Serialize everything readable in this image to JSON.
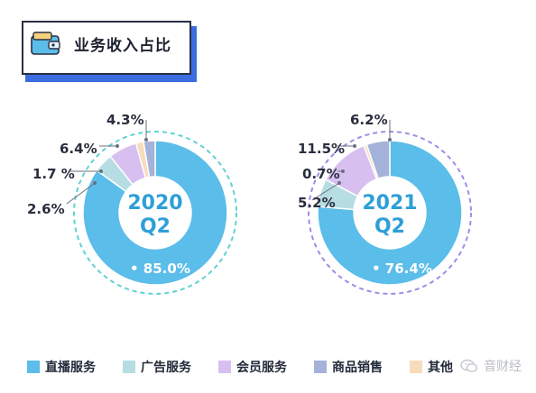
{
  "header": {
    "title": "业务收入占比"
  },
  "colors": {
    "live": "#5bbde9",
    "ads": "#b6dde3",
    "member": "#d7c0f0",
    "goods": "#a5b2d9",
    "other": "#f7dcbc"
  },
  "chart_data": [
    {
      "type": "pie",
      "title": "2020 Q2",
      "center_label_line1": "2020",
      "center_label_line2": "Q2",
      "slices": [
        {
          "name": "直播服务",
          "value": 85.0,
          "label": "• 85.0%"
        },
        {
          "name": "广告服务",
          "value": 4.3,
          "label": "4.3%"
        },
        {
          "name": "会员服务",
          "value": 6.4,
          "label": "6.4%"
        },
        {
          "name": "其他",
          "value": 1.7,
          "label": "1.7 %"
        },
        {
          "name": "商品销售",
          "value": 2.6,
          "label": "2.6%"
        }
      ]
    },
    {
      "type": "pie",
      "title": "2021 Q2",
      "center_label_line1": "2021",
      "center_label_line2": "Q2",
      "slices": [
        {
          "name": "直播服务",
          "value": 76.4,
          "label": "• 76.4%"
        },
        {
          "name": "广告服务",
          "value": 6.2,
          "label": "6.2%"
        },
        {
          "name": "会员服务",
          "value": 11.5,
          "label": "11.5%"
        },
        {
          "name": "其他",
          "value": 0.7,
          "label": "0.7%"
        },
        {
          "name": "商品销售",
          "value": 5.2,
          "label": "5.2%"
        }
      ]
    }
  ],
  "legend": [
    {
      "name": "直播服务",
      "color": "#5bbde9"
    },
    {
      "name": "广告服务",
      "color": "#b6dde3"
    },
    {
      "name": "会员服务",
      "color": "#d7c0f0"
    },
    {
      "name": "商品销售",
      "color": "#a5b2d9"
    },
    {
      "name": "其他",
      "color": "#f7dcbc"
    }
  ],
  "watermark": {
    "text": "音财经",
    "icon": "wechat-icon"
  }
}
